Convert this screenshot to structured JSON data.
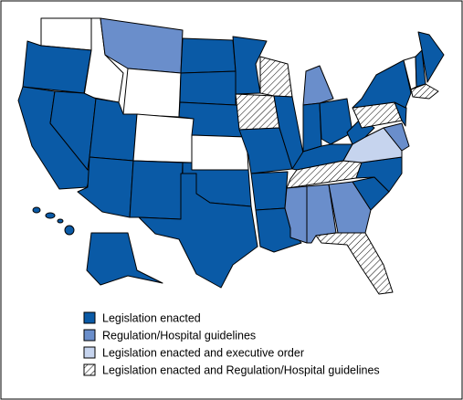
{
  "legend": {
    "items": [
      {
        "name": "Legislation enacted",
        "color": "#0a5aa6"
      },
      {
        "name": "Regulation/Hospital guidelines",
        "color": "#6a8ecb"
      },
      {
        "name": "Legislation enacted and executive order",
        "color": "#c6d4ee"
      },
      {
        "name": "Legislation enacted and Regulation/Hospital guidelines",
        "color": "#ffffff",
        "pattern": "hatch"
      }
    ]
  }
}
